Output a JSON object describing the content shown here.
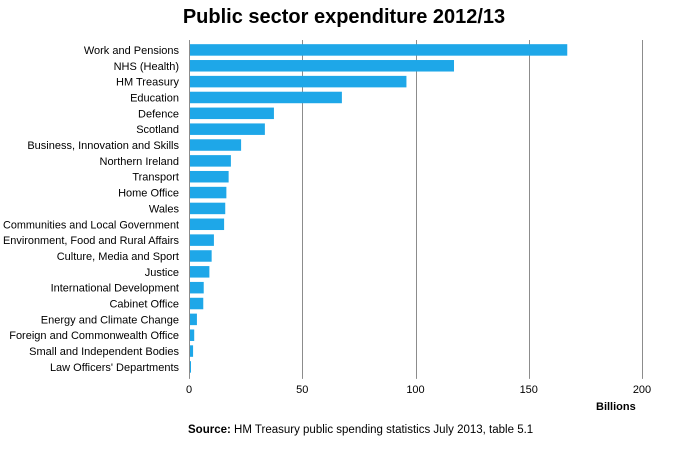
{
  "chart_data": {
    "type": "bar",
    "orientation": "horizontal",
    "title": "Public sector expenditure 2012/13",
    "xlabel": "Billions",
    "ylabel": "",
    "xlim": [
      0,
      200
    ],
    "xticks": [
      "0",
      "50",
      "100",
      "150",
      "200"
    ],
    "grid": true,
    "bar_color": "#1ea7e8",
    "categories": [
      "Work and Pensions",
      "NHS (Health)",
      "HM Treasury",
      "Education",
      "Defence",
      "Scotland",
      "Business, Innovation and Skills",
      "Northern Ireland",
      "Transport",
      "Home Office",
      "Wales",
      "Communities and Local Government",
      "Environment, Food and Rural Affairs",
      "Culture, Media and Sport",
      "Justice",
      "International Development",
      "Cabinet Office",
      "Energy and Climate Change",
      "Foreign and Commonwealth Office",
      "Small and Independent Bodies",
      "Law Officers' Departments"
    ],
    "values": [
      167,
      117,
      96,
      67.5,
      37.5,
      33.5,
      23,
      18.5,
      17.5,
      16.5,
      16,
      15.5,
      11,
      10,
      9,
      6.5,
      6.3,
      3.5,
      2.3,
      1.8,
      0.5
    ]
  },
  "source": {
    "prefix": "Source:",
    "text": " HM Treasury public spending statistics July 2013, table 5.1"
  }
}
